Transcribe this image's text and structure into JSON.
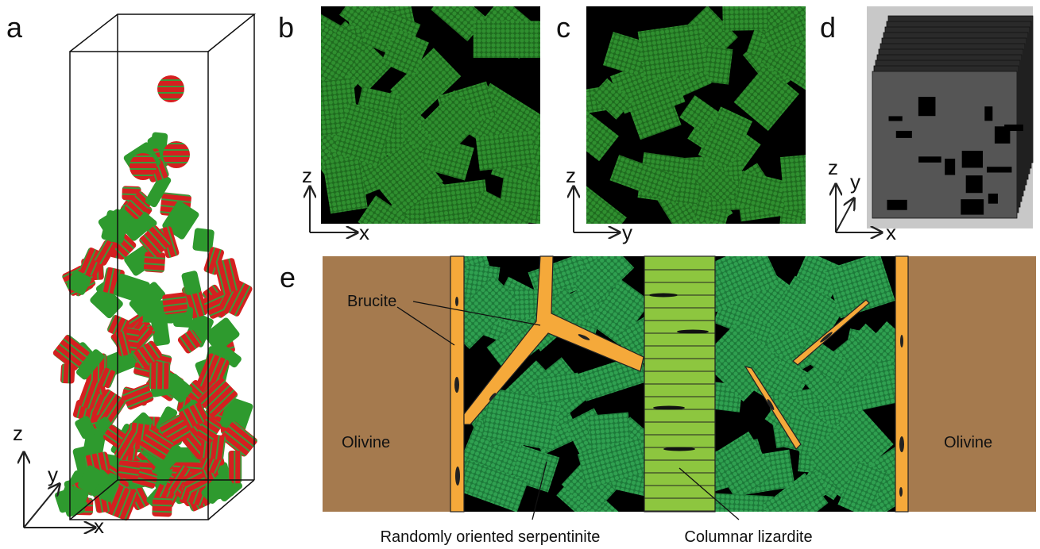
{
  "panels": [
    {
      "label": "a",
      "axes": [
        "z",
        "y",
        "x"
      ]
    },
    {
      "label": "b",
      "axes": [
        "z",
        "x"
      ]
    },
    {
      "label": "c",
      "axes": [
        "z",
        "y"
      ]
    },
    {
      "label": "d",
      "axes": [
        "z",
        "y",
        "x"
      ]
    },
    {
      "label": "e",
      "annotations": {
        "brucite": "Brucite",
        "olivine_left": "Olivine",
        "olivine_right": "Olivine",
        "serpentinite": "Randomly oriented serpentinite",
        "lizardite": "Columnar lizardite"
      }
    }
  ]
}
